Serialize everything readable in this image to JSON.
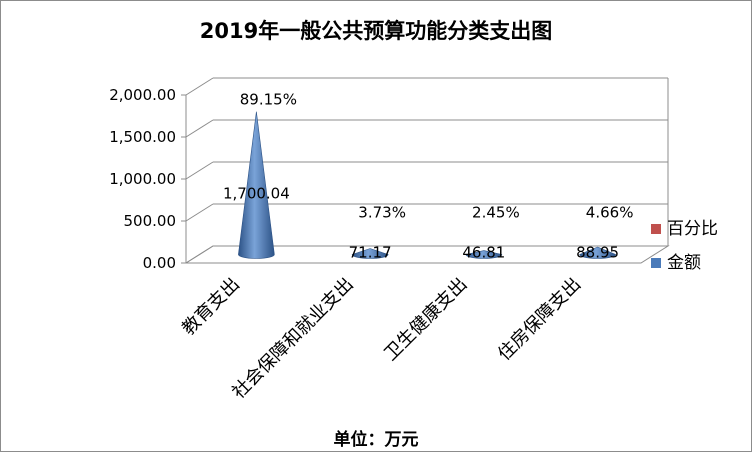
{
  "chart_data": {
    "type": "bar",
    "title": "2019年一般公共预算功能分类支出图",
    "xlabel": "单位：万元",
    "ylabel": "",
    "categories": [
      "教育支出",
      "社会保障和就业支出",
      "卫生健康支出",
      "住房保障支出"
    ],
    "series": [
      {
        "name": "金额",
        "values": [
          1700.04,
          71.17,
          46.81,
          88.95
        ],
        "labels": [
          "1,700.04",
          "71.17",
          "46.81",
          "88.95"
        ],
        "color": "#4a7ab9"
      },
      {
        "name": "百分比",
        "values": [
          89.15,
          3.73,
          2.45,
          4.66
        ],
        "labels": [
          "89.15%",
          "3.73%",
          "2.45%",
          "4.66%"
        ],
        "color": "#c0504d"
      }
    ],
    "ylim": [
      0,
      2000
    ],
    "yticks": [
      "0.00",
      "500.00",
      "1,000.00",
      "1,500.00",
      "2,000.00"
    ],
    "grid": true,
    "legend": "right"
  }
}
